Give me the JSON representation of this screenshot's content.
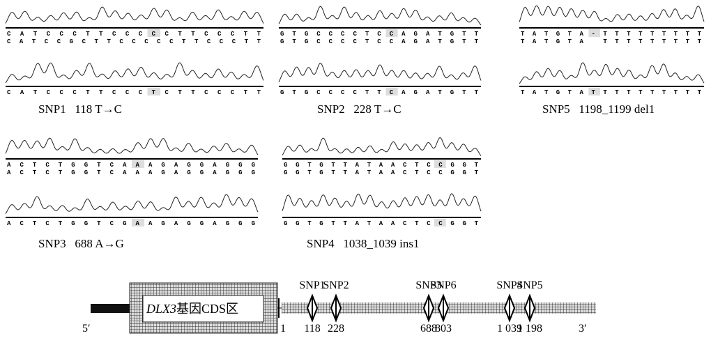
{
  "panels": [
    {
      "label": "SNP1   118 T→C",
      "top_seq": "CATCCCTTCCCCCTTCCCTT",
      "ref_seq": "CATCCGCTTCCCCCTTCCCTT",
      "mut_seq": "CATCCCTTCCCTCTTCCCTT"
    },
    {
      "label": "SNP2   228 T→C",
      "top_seq": "GTGCCCCTCCAGATGTT",
      "ref_seq": "GTGCCCCTCCAGATGTT",
      "mut_seq": "GTGCCCCTTCAGATGTT"
    },
    {
      "label": "SNP5   1198_1199 del1",
      "top_seq": "TATGTA-TTTTTTTTT",
      "ref_seq": "TATGTA TTTTTTTTT",
      "mut_seq": "TATGTATTTTTTTTTT"
    },
    {
      "label": "SNP3   688 A→G",
      "top_seq": "ACTCTGGTCAAAGAGGAGGG",
      "ref_seq": "ACTCTGGTCAAAGAGGAGGG",
      "mut_seq": "ACTCTGGTCGAAGAGGAGGG"
    },
    {
      "label": "SNP4   1038_1039 ins1",
      "top_seq": "GGTGTTATAACTCCGGT",
      "ref_seq": "GGTGTTATAACTCCGGT",
      "mut_seq": "GGTGTTATAACTCCGGT"
    }
  ],
  "gene": {
    "region_gene": "DLX3",
    "region_text": "基因CDS区",
    "five_prime": "5′",
    "three_prime": "3′",
    "start": "1",
    "snps": [
      {
        "name": "SNP1",
        "position": "118"
      },
      {
        "name": "SNP2",
        "position": "228"
      },
      {
        "name": "SNP3",
        "position": "688"
      },
      {
        "name": "SNP6",
        "position": "803"
      },
      {
        "name": "SNP4",
        "position": "1 039"
      },
      {
        "name": "SNP5",
        "position": "1 198"
      }
    ]
  }
}
